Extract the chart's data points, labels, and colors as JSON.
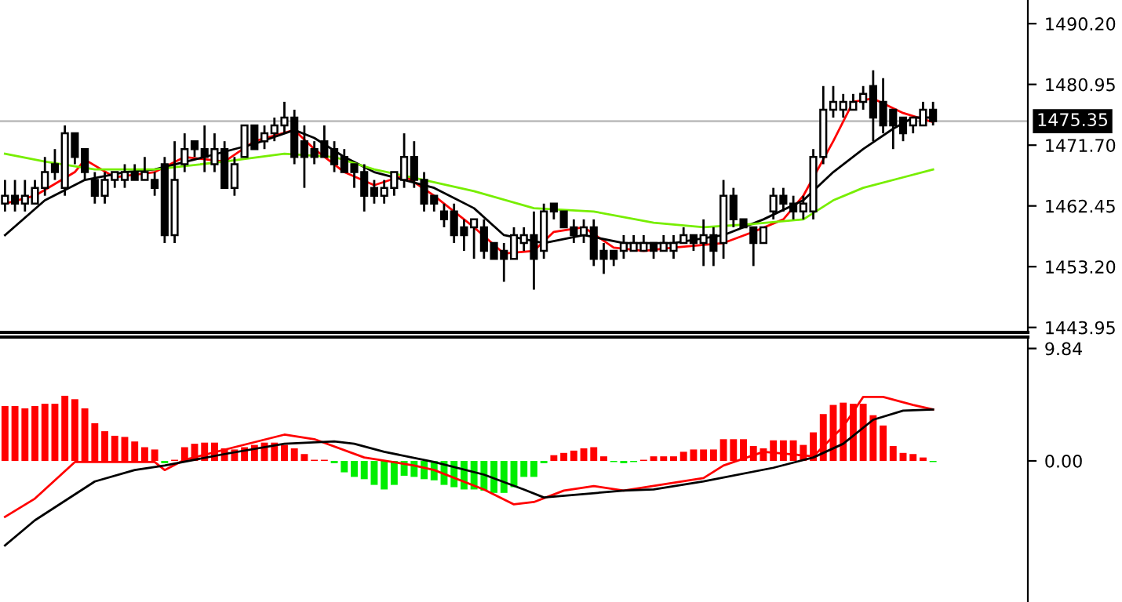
{
  "chart_data": [
    {
      "type": "candlestick",
      "categories": [
        null,
        null,
        null,
        null,
        null,
        null,
        null,
        null,
        null,
        null,
        null,
        null,
        null,
        null,
        null,
        null,
        null,
        null,
        null,
        null,
        null,
        null,
        null,
        null,
        null,
        null,
        null,
        null,
        null,
        null,
        null,
        null,
        null,
        null,
        null,
        null,
        null,
        null,
        null,
        null,
        null,
        null,
        null,
        null,
        null,
        null,
        null,
        null,
        null,
        null,
        null,
        null,
        null,
        null,
        null,
        null,
        null,
        null,
        null,
        null,
        null,
        null,
        null,
        null,
        null,
        null,
        null,
        null,
        null,
        null,
        null,
        null,
        null,
        null,
        null,
        null,
        null,
        null,
        null,
        null,
        null,
        null,
        null,
        null,
        null,
        null,
        null,
        null,
        null,
        null,
        null,
        null,
        null,
        null,
        null,
        null,
        null,
        null,
        null,
        null,
        null,
        null,
        null
      ],
      "ohlc": [
        [
          1462.8,
          1466.4,
          1461.6,
          1464.0
        ],
        [
          1464.0,
          1466.4,
          1461.6,
          1462.8
        ],
        [
          1462.8,
          1466.4,
          1461.6,
          1464.0
        ],
        [
          1462.8,
          1466.4,
          1462.8,
          1465.2
        ],
        [
          1465.2,
          1469.9,
          1464.0,
          1467.6
        ],
        [
          1468.8,
          1471.1,
          1466.4,
          1467.6
        ],
        [
          1465.2,
          1474.7,
          1464.0,
          1473.5
        ],
        [
          1473.5,
          1473.5,
          1468.8,
          1469.9
        ],
        [
          1471.1,
          1471.1,
          1466.4,
          1467.6
        ],
        [
          1466.4,
          1467.6,
          1462.8,
          1464.0
        ],
        [
          1464.0,
          1467.6,
          1462.8,
          1466.4
        ],
        [
          1466.4,
          1467.6,
          1465.2,
          1467.6
        ],
        [
          1466.4,
          1468.8,
          1465.2,
          1467.6
        ],
        [
          1467.6,
          1468.8,
          1466.4,
          1466.4
        ],
        [
          1466.4,
          1469.9,
          1466.4,
          1467.6
        ],
        [
          1466.4,
          1467.6,
          1464.0,
          1465.2
        ],
        [
          1468.8,
          1469.9,
          1456.8,
          1458.0
        ],
        [
          1458.0,
          1472.3,
          1456.8,
          1466.4
        ],
        [
          1468.8,
          1473.5,
          1467.6,
          1471.1
        ],
        [
          1472.3,
          1472.3,
          1469.9,
          1471.1
        ],
        [
          1471.1,
          1474.7,
          1467.6,
          1469.9
        ],
        [
          1468.8,
          1473.5,
          1467.6,
          1471.1
        ],
        [
          1471.1,
          1472.3,
          1465.2,
          1465.2
        ],
        [
          1465.2,
          1469.9,
          1464.0,
          1468.8
        ],
        [
          1469.9,
          1474.7,
          1469.9,
          1474.7
        ],
        [
          1474.7,
          1474.7,
          1471.1,
          1471.1
        ],
        [
          1472.3,
          1474.7,
          1471.1,
          1473.5
        ],
        [
          1473.5,
          1475.9,
          1472.3,
          1474.7
        ],
        [
          1474.7,
          1478.3,
          1473.5,
          1475.9
        ],
        [
          1475.9,
          1477.1,
          1468.8,
          1469.9
        ],
        [
          1472.3,
          1474.7,
          1465.2,
          1469.9
        ],
        [
          1471.1,
          1472.3,
          1468.8,
          1469.9
        ],
        [
          1472.3,
          1474.7,
          1469.9,
          1469.9
        ],
        [
          1471.1,
          1472.3,
          1467.6,
          1468.8
        ],
        [
          1469.9,
          1471.1,
          1467.6,
          1467.6
        ],
        [
          1468.8,
          1468.8,
          1465.2,
          1467.6
        ],
        [
          1467.6,
          1468.8,
          1461.6,
          1464.0
        ],
        [
          1465.2,
          1466.4,
          1462.8,
          1464.0
        ],
        [
          1464.0,
          1466.4,
          1462.8,
          1465.2
        ],
        [
          1465.2,
          1467.6,
          1464.0,
          1467.6
        ],
        [
          1466.4,
          1473.5,
          1465.2,
          1469.9
        ],
        [
          1469.9,
          1472.3,
          1465.2,
          1466.4
        ],
        [
          1466.4,
          1467.6,
          1461.6,
          1462.8
        ],
        [
          1464.0,
          1464.0,
          1461.6,
          1462.8
        ],
        [
          1461.6,
          1462.8,
          1459.2,
          1460.4
        ],
        [
          1461.6,
          1462.8,
          1456.8,
          1458.0
        ],
        [
          1459.2,
          1460.4,
          1455.6,
          1458.0
        ],
        [
          1459.2,
          1460.4,
          1454.4,
          1460.4
        ],
        [
          1459.2,
          1460.4,
          1454.4,
          1455.6
        ],
        [
          1456.8,
          1456.8,
          1454.4,
          1454.4
        ],
        [
          1455.6,
          1456.8,
          1450.9,
          1454.4
        ],
        [
          1454.4,
          1459.2,
          1454.4,
          1458.0
        ],
        [
          1456.8,
          1459.2,
          1455.6,
          1458.0
        ],
        [
          1458.0,
          1461.6,
          1449.7,
          1454.4
        ],
        [
          1455.6,
          1462.8,
          1454.4,
          1461.6
        ],
        [
          1462.8,
          1462.8,
          1460.4,
          1461.6
        ],
        [
          1461.6,
          1461.6,
          1459.2,
          1459.2
        ],
        [
          1459.2,
          1460.4,
          1456.8,
          1458.0
        ],
        [
          1458.0,
          1460.4,
          1456.8,
          1459.2
        ],
        [
          1459.2,
          1460.4,
          1453.3,
          1454.4
        ],
        [
          1455.6,
          1456.8,
          1452.1,
          1454.4
        ],
        [
          1455.6,
          1455.6,
          1453.3,
          1454.4
        ],
        [
          1455.6,
          1458.0,
          1454.4,
          1456.8
        ],
        [
          1455.6,
          1458.0,
          1455.6,
          1456.8
        ],
        [
          1455.6,
          1458.0,
          1455.6,
          1456.8
        ],
        [
          1456.8,
          1456.8,
          1454.4,
          1455.6
        ],
        [
          1455.6,
          1458.0,
          1455.6,
          1456.8
        ],
        [
          1455.6,
          1458.0,
          1454.4,
          1456.8
        ],
        [
          1456.8,
          1459.2,
          1456.8,
          1458.0
        ],
        [
          1458.0,
          1458.0,
          1455.6,
          1456.8
        ],
        [
          1456.8,
          1460.4,
          1453.3,
          1458.0
        ],
        [
          1458.0,
          1459.2,
          1453.3,
          1455.6
        ],
        [
          1456.8,
          1466.4,
          1454.4,
          1464.0
        ],
        [
          1464.0,
          1465.2,
          1459.2,
          1460.4
        ],
        [
          1460.4,
          1460.4,
          1459.2,
          1459.2
        ],
        [
          1459.2,
          1459.2,
          1453.3,
          1456.8
        ],
        [
          1456.8,
          1459.2,
          1456.8,
          1459.2
        ],
        [
          1461.6,
          1465.2,
          1460.4,
          1464.0
        ],
        [
          1464.0,
          1465.2,
          1461.6,
          1462.8
        ],
        [
          1462.8,
          1464.0,
          1460.4,
          1461.6
        ],
        [
          1461.6,
          1464.0,
          1460.4,
          1462.8
        ],
        [
          1461.6,
          1471.1,
          1460.4,
          1469.9
        ],
        [
          1469.9,
          1480.7,
          1468.8,
          1477.1
        ],
        [
          1477.1,
          1480.7,
          1475.9,
          1478.3
        ],
        [
          1477.1,
          1479.5,
          1475.9,
          1478.3
        ],
        [
          1477.1,
          1479.5,
          1477.1,
          1478.3
        ],
        [
          1478.3,
          1480.7,
          1477.1,
          1479.5
        ],
        [
          1480.7,
          1483.1,
          1472.3,
          1475.9
        ],
        [
          1478.3,
          1481.9,
          1473.5,
          1474.7
        ],
        [
          1477.1,
          1477.1,
          1471.1,
          1474.7
        ],
        [
          1475.9,
          1475.9,
          1472.3,
          1473.5
        ],
        [
          1474.7,
          1475.9,
          1473.5,
          1475.9
        ],
        [
          1474.7,
          1478.3,
          1474.7,
          1477.1
        ],
        [
          1477.1,
          1478.3,
          1474.7,
          1475.35
        ],
        null,
        null,
        null,
        null,
        null,
        null,
        null,
        null,
        null
      ],
      "series": [
        {
          "type": "line",
          "color": "#ff0000",
          "values": [
            1462.8,
            null,
            null,
            1464.0,
            null,
            null,
            null,
            1467.6,
            1469.5,
            null,
            null,
            1466.8,
            null,
            null,
            null,
            1467.6,
            null,
            null,
            1469.9,
            null,
            null,
            null,
            1469.2,
            null,
            null,
            1472.3,
            null,
            null,
            null,
            1474.0,
            null,
            1471.1,
            null,
            null,
            1467.6,
            null,
            null,
            1465.6,
            null,
            null,
            1467.1,
            null,
            null,
            1464.0,
            null,
            null,
            null,
            1459.2,
            null,
            null,
            1455.2,
            null,
            null,
            1455.6,
            null,
            1458.5,
            null,
            null,
            1459.2,
            null,
            null,
            1456.1,
            null,
            null,
            1455.6,
            null,
            null,
            1456.1,
            null,
            null,
            null,
            null,
            1456.8,
            null,
            null,
            1458.5,
            null,
            null,
            1460.4,
            null,
            1464.0,
            null,
            null,
            1472.3,
            null,
            1478.3,
            null,
            1478.8,
            null,
            null,
            1476.6,
            null,
            null,
            1475.2,
            null,
            null,
            null,
            null,
            null,
            null,
            null,
            null,
            null
          ]
        },
        {
          "type": "line",
          "color": "#000000",
          "values": [
            1458.0,
            null,
            null,
            null,
            1463.3,
            null,
            null,
            null,
            1466.4,
            null,
            null,
            null,
            1467.6,
            null,
            null,
            1468.0,
            null,
            null,
            null,
            null,
            1469.9,
            null,
            null,
            null,
            null,
            1471.9,
            null,
            null,
            null,
            1474.0,
            null,
            1472.8,
            null,
            null,
            1469.9,
            null,
            null,
            1467.6,
            null,
            null,
            1466.4,
            null,
            null,
            1465.2,
            null,
            null,
            null,
            1462.1,
            null,
            null,
            1458.0,
            null,
            null,
            null,
            1456.8,
            null,
            null,
            null,
            1458.0,
            null,
            null,
            null,
            1456.8,
            null,
            null,
            null,
            null,
            1456.8,
            null,
            null,
            null,
            null,
            1458.0,
            null,
            null,
            null,
            1460.4,
            null,
            null,
            null,
            1463.3,
            null,
            null,
            1467.6,
            null,
            null,
            1471.1,
            null,
            null,
            1474.2,
            null,
            1475.9,
            null,
            1475.9,
            null,
            null,
            null,
            null,
            null,
            null,
            null,
            null,
            null
          ]
        },
        {
          "type": "line",
          "color": "#77ee00",
          "values": [
            1470.4,
            null,
            null,
            null,
            1469.2,
            null,
            null,
            null,
            null,
            1468.0,
            null,
            null,
            null,
            null,
            null,
            1468.0,
            null,
            null,
            null,
            null,
            null,
            null,
            1469.2,
            null,
            null,
            null,
            null,
            null,
            1470.4,
            null,
            null,
            null,
            null,
            1469.9,
            null,
            null,
            null,
            1468.0,
            null,
            null,
            null,
            null,
            1466.4,
            null,
            null,
            null,
            null,
            1464.7,
            null,
            null,
            null,
            null,
            null,
            1462.1,
            null,
            null,
            null,
            null,
            null,
            1461.6,
            null,
            null,
            null,
            null,
            null,
            1459.9,
            null,
            null,
            null,
            null,
            1459.2,
            null,
            null,
            null,
            null,
            1459.7,
            null,
            null,
            null,
            null,
            1460.4,
            null,
            null,
            1463.3,
            null,
            null,
            1465.2,
            null,
            null,
            null,
            1466.8,
            null,
            null,
            1468.0,
            null,
            null,
            null,
            null,
            null,
            null,
            null,
            null,
            null
          ]
        }
      ],
      "ylim": [
        1443.2,
        1493.8
      ],
      "yticks": [
        {
          "value": 1443.95,
          "label": "1443.95"
        },
        {
          "value": 1453.2,
          "label": "1453.20"
        },
        {
          "value": 1462.45,
          "label": "1462.45"
        },
        {
          "value": 1471.7,
          "label": "1471.70"
        },
        {
          "value": 1480.95,
          "label": "1480.95"
        },
        {
          "value": 1490.2,
          "label": "1490.20"
        }
      ],
      "ref_lines": [
        {
          "axis": "y",
          "value": 1475.35,
          "label": "1475.35",
          "color": "#c0c0c0"
        }
      ],
      "tick_labels": "y"
    },
    {
      "type": "bar",
      "categories": [
        null,
        null,
        null,
        null,
        null,
        null,
        null,
        null,
        null,
        null,
        null,
        null,
        null,
        null,
        null,
        null,
        null,
        null,
        null,
        null,
        null,
        null,
        null,
        null,
        null,
        null,
        null,
        null,
        null,
        null,
        null,
        null,
        null,
        null,
        null,
        null,
        null,
        null,
        null,
        null,
        null,
        null,
        null,
        null,
        null,
        null,
        null,
        null,
        null,
        null,
        null,
        null,
        null,
        null,
        null,
        null,
        null,
        null,
        null,
        null,
        null,
        null,
        null,
        null,
        null,
        null,
        null,
        null,
        null,
        null,
        null,
        null,
        null,
        null,
        null,
        null,
        null,
        null,
        null,
        null,
        null,
        null,
        null,
        null,
        null,
        null,
        null,
        null,
        null,
        null,
        null,
        null,
        null,
        null,
        null,
        null,
        null,
        null,
        null,
        null,
        null,
        null,
        null
      ],
      "series": [
        {
          "type": "bar",
          "values": [
            4.8,
            4.8,
            4.6,
            4.8,
            5.0,
            5.0,
            5.7,
            5.4,
            4.6,
            3.3,
            2.6,
            2.2,
            2.1,
            1.7,
            1.2,
            1.0,
            -0.2,
            0.1,
            1.2,
            1.5,
            1.6,
            1.6,
            1.1,
            1.0,
            1.2,
            1.4,
            1.6,
            1.6,
            1.4,
            1.1,
            0.6,
            0.1,
            0.1,
            -0.2,
            -1.0,
            -1.4,
            -1.6,
            -2.1,
            -2.5,
            -2.1,
            -1.3,
            -1.4,
            -1.6,
            -1.7,
            -2.1,
            -2.3,
            -2.5,
            -2.5,
            -2.6,
            -2.8,
            -2.8,
            -2.3,
            -1.4,
            -1.4,
            -0.2,
            0.5,
            0.7,
            0.9,
            1.1,
            1.2,
            0.4,
            -0.1,
            -0.2,
            -0.1,
            0.1,
            0.4,
            0.4,
            0.4,
            0.8,
            1.0,
            1.0,
            1.0,
            1.9,
            1.9,
            1.9,
            1.3,
            1.1,
            1.8,
            1.8,
            1.8,
            1.4,
            2.5,
            4.1,
            4.9,
            5.1,
            5.0,
            5.0,
            4.0,
            3.1,
            1.3,
            0.7,
            0.6,
            0.3,
            -0.1,
            null,
            null,
            null,
            null,
            null,
            null,
            null,
            null,
            null
          ],
          "colors": [
            "#ff0000",
            "#ff0000",
            "#ff0000",
            "#ff0000",
            "#ff0000",
            "#ff0000",
            "#ff0000",
            "#ff0000",
            "#ff0000",
            "#ff0000",
            "#ff0000",
            "#ff0000",
            "#ff0000",
            "#ff0000",
            "#ff0000",
            "#ff0000",
            "#00ee00",
            "#ff0000",
            "#ff0000",
            "#ff0000",
            "#ff0000",
            "#ff0000",
            "#ff0000",
            "#ff0000",
            "#ff0000",
            "#ff0000",
            "#ff0000",
            "#ff0000",
            "#ff0000",
            "#ff0000",
            "#ff0000",
            "#ff0000",
            "#ff0000",
            "#00ee00",
            "#00ee00",
            "#00ee00",
            "#00ee00",
            "#00ee00",
            "#00ee00",
            "#00ee00",
            "#00ee00",
            "#00ee00",
            "#00ee00",
            "#00ee00",
            "#00ee00",
            "#00ee00",
            "#00ee00",
            "#00ee00",
            "#00ee00",
            "#00ee00",
            "#00ee00",
            "#00ee00",
            "#00ee00",
            "#00ee00",
            "#00ee00",
            "#ff0000",
            "#ff0000",
            "#ff0000",
            "#ff0000",
            "#ff0000",
            "#ff0000",
            "#00ee00",
            "#00ee00",
            "#00ee00",
            "#ff0000",
            "#ff0000",
            "#ff0000",
            "#ff0000",
            "#ff0000",
            "#ff0000",
            "#ff0000",
            "#ff0000",
            "#ff0000",
            "#ff0000",
            "#ff0000",
            "#ff0000",
            "#ff0000",
            "#ff0000",
            "#ff0000",
            "#ff0000",
            "#ff0000",
            "#ff0000",
            "#ff0000",
            "#ff0000",
            "#ff0000",
            "#ff0000",
            "#ff0000",
            "#ff0000",
            "#ff0000",
            "#ff0000",
            "#ff0000",
            "#ff0000",
            "#ff0000",
            "#00ee00",
            null,
            null,
            null,
            null,
            null,
            null,
            null,
            null,
            null
          ]
        },
        {
          "type": "line",
          "color": "#ff0000",
          "values": [
            -4.9,
            null,
            null,
            -3.3,
            null,
            null,
            null,
            -0.1,
            null,
            -0.1,
            null,
            null,
            null,
            null,
            null,
            -0.1,
            -0.8,
            null,
            0.1,
            null,
            null,
            null,
            null,
            1.2,
            null,
            null,
            null,
            null,
            2.3,
            null,
            null,
            1.9,
            null,
            null,
            null,
            null,
            0.3,
            null,
            null,
            null,
            null,
            -0.4,
            null,
            -0.8,
            null,
            null,
            null,
            null,
            -2.5,
            null,
            null,
            -3.8,
            null,
            -3.6,
            null,
            null,
            -2.6,
            null,
            null,
            -2.2,
            null,
            null,
            -2.6,
            null,
            null,
            null,
            null,
            null,
            null,
            null,
            -1.5,
            null,
            -0.4,
            null,
            null,
            null,
            0.8,
            null,
            null,
            null,
            null,
            0.4,
            null,
            null,
            3.0,
            null,
            5.6,
            null,
            5.6,
            null,
            null,
            4.9,
            null,
            4.5,
            null,
            null,
            null,
            null,
            null,
            null,
            null,
            null,
            null
          ]
        },
        {
          "type": "line",
          "color": "#000000",
          "values": [
            -7.4,
            null,
            null,
            -5.2,
            null,
            null,
            null,
            null,
            null,
            -1.8,
            null,
            null,
            null,
            -0.8,
            null,
            null,
            -0.4,
            null,
            null,
            null,
            null,
            null,
            0.6,
            null,
            null,
            null,
            null,
            null,
            1.5,
            null,
            null,
            null,
            null,
            1.7,
            null,
            1.5,
            null,
            null,
            0.8,
            null,
            null,
            null,
            null,
            -0.1,
            null,
            null,
            null,
            null,
            -1.2,
            null,
            null,
            null,
            -2.5,
            null,
            -3.2,
            null,
            null,
            null,
            null,
            null,
            null,
            null,
            -2.6,
            null,
            null,
            -2.5,
            null,
            null,
            null,
            null,
            -1.8,
            null,
            null,
            null,
            null,
            null,
            null,
            -0.6,
            null,
            null,
            null,
            0.3,
            null,
            null,
            1.5,
            null,
            null,
            3.6,
            null,
            null,
            4.4,
            null,
            null,
            4.5,
            null,
            null,
            null,
            null,
            null,
            null,
            null,
            null,
            null
          ]
        }
      ],
      "ylim": [
        -12.35,
        10.84
      ],
      "yticks": [
        {
          "value": 0,
          "label": "0.00"
        },
        {
          "value": 9.84,
          "label": "9.84"
        }
      ],
      "tick_labels": "y"
    }
  ]
}
